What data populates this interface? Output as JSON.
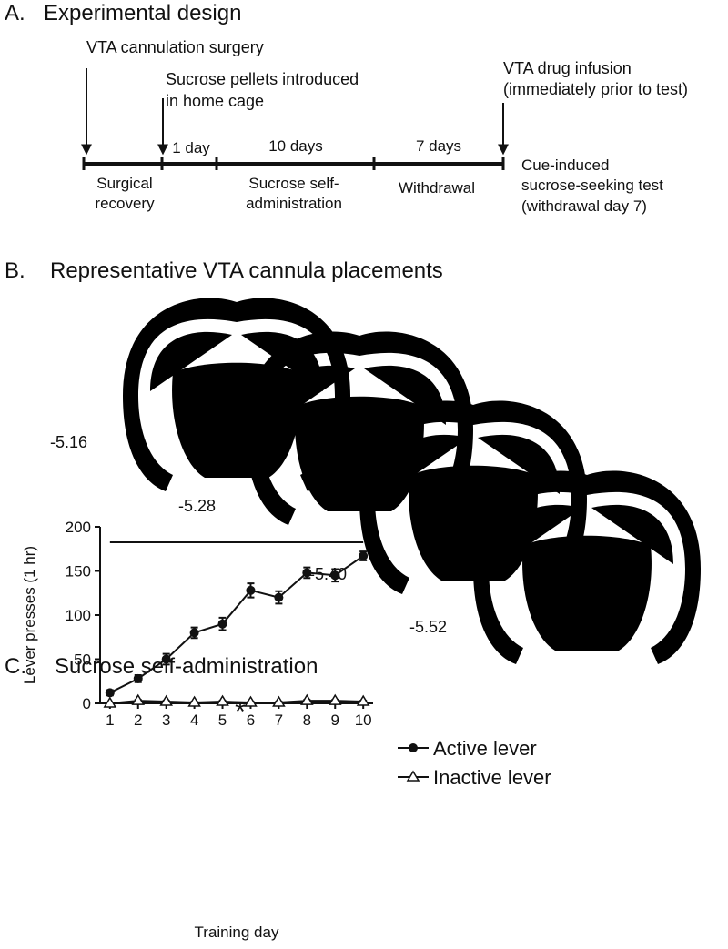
{
  "panel_a": {
    "label": "A.",
    "title": "Experimental design",
    "events": [
      "VTA cannulation surgery",
      "Sucrose pellets introduced",
      "in home cage",
      "VTA drug infusion",
      "(immediately prior to test)"
    ],
    "durations": [
      "1 day",
      "10 days",
      "7 days"
    ],
    "phases": [
      "Surgical",
      "recovery",
      "Sucrose self-",
      "administration",
      "Withdrawal",
      "Cue-induced",
      "sucrose-seeking test",
      "(withdrawal day 7)"
    ]
  },
  "panel_b": {
    "label": "B.",
    "title": "Representative VTA cannula placements",
    "levels": [
      "-5.16",
      "-5.28",
      "-5.40",
      "-5.52"
    ]
  },
  "chart_data": {
    "type": "line",
    "label": "C.",
    "title": "Sucrose self-administration",
    "xlabel": "Training day",
    "ylabel": "Lever presses (1 hr)",
    "annotation": "*",
    "x": [
      1,
      2,
      3,
      4,
      5,
      6,
      7,
      8,
      9,
      10
    ],
    "xlim": [
      0.65,
      10.35
    ],
    "xticks": [
      1,
      2,
      3,
      4,
      5,
      6,
      7,
      8,
      9,
      10
    ],
    "ylim": [
      0,
      200
    ],
    "yticks": [
      0,
      50,
      100,
      150,
      200
    ],
    "series": [
      {
        "name": "Active lever",
        "color": "#111111",
        "marker": "circle",
        "values": [
          12,
          28,
          50,
          80,
          90,
          128,
          120,
          148,
          145,
          167
        ],
        "errors": [
          3,
          4,
          6,
          6,
          7,
          8,
          7,
          6,
          7,
          5
        ]
      },
      {
        "name": "Inactive lever",
        "color": "#111111",
        "marker": "triangle",
        "values": [
          0,
          3,
          2,
          1,
          2,
          1,
          1,
          3,
          3,
          2
        ],
        "errors": [
          1,
          1,
          1,
          1,
          1,
          1,
          1,
          1,
          1,
          1
        ]
      }
    ]
  }
}
